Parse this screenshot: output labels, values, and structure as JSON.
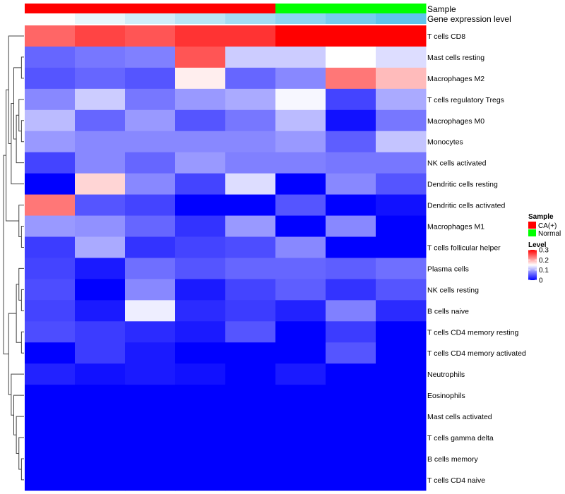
{
  "chart_data": {
    "type": "heatmap",
    "annotation_tracks": [
      {
        "name": "Sample",
        "values": [
          "CA(+)",
          "CA(+)",
          "CA(+)",
          "CA(+)",
          "CA(+)",
          "Normal",
          "Normal",
          "Normal"
        ]
      },
      {
        "name": "Gene expression level",
        "values": [
          0.0,
          0.1,
          0.2,
          0.3,
          0.4,
          0.5,
          0.6,
          0.7
        ]
      }
    ],
    "rows": [
      "T cells CD8",
      "Mast cells resting",
      "Macrophages M2",
      "T cells regulatory  Tregs",
      "Macrophages M0",
      "Monocytes",
      "NK cells activated",
      "Dendritic cells resting",
      "Dendritic cells activated",
      "Macrophages M1",
      "T cells follicular helper",
      "Plasma cells",
      "NK cells resting",
      "B cells naive",
      "T cells CD4 memory resting",
      "T cells CD4 memory activated",
      "Neutrophils",
      "Eosinophils",
      "Mast cells activated",
      "T cells gamma delta",
      "B cells memory",
      "T cells CD4 naive"
    ],
    "values": [
      [
        0.24,
        0.26,
        0.25,
        0.27,
        0.27,
        0.3,
        0.3,
        0.3
      ],
      [
        0.06,
        0.07,
        0.075,
        0.25,
        0.12,
        0.12,
        0.15,
        0.13
      ],
      [
        0.05,
        0.06,
        0.05,
        0.16,
        0.06,
        0.08,
        0.23,
        0.19
      ],
      [
        0.08,
        0.12,
        0.07,
        0.09,
        0.1,
        0.145,
        0.04,
        0.1
      ],
      [
        0.11,
        0.06,
        0.09,
        0.05,
        0.07,
        0.11,
        0.01,
        0.07
      ],
      [
        0.09,
        0.08,
        0.08,
        0.08,
        0.08,
        0.09,
        0.055,
        0.115
      ],
      [
        0.04,
        0.08,
        0.06,
        0.09,
        0.075,
        0.075,
        0.07,
        0.07
      ],
      [
        0.0,
        0.175,
        0.08,
        0.04,
        0.13,
        0.0,
        0.08,
        0.05
      ],
      [
        0.23,
        0.05,
        0.04,
        0.0,
        0.0,
        0.05,
        0.0,
        0.01
      ],
      [
        0.09,
        0.085,
        0.06,
        0.03,
        0.09,
        0.0,
        0.08,
        0.0
      ],
      [
        0.035,
        0.1,
        0.03,
        0.04,
        0.045,
        0.08,
        0.0,
        0.0
      ],
      [
        0.04,
        0.015,
        0.065,
        0.05,
        0.06,
        0.06,
        0.055,
        0.065
      ],
      [
        0.045,
        0.0,
        0.08,
        0.015,
        0.04,
        0.055,
        0.03,
        0.05
      ],
      [
        0.04,
        0.015,
        0.14,
        0.025,
        0.035,
        0.02,
        0.075,
        0.025
      ],
      [
        0.045,
        0.035,
        0.025,
        0.015,
        0.05,
        0.0,
        0.035,
        0.0
      ],
      [
        0.0,
        0.035,
        0.015,
        0.0,
        0.0,
        0.0,
        0.05,
        0.0
      ],
      [
        0.02,
        0.01,
        0.015,
        0.01,
        0.0,
        0.015,
        0.0,
        0.0
      ],
      [
        0.0,
        0.0,
        0.0,
        0.0,
        0.0,
        0.0,
        0.0,
        0.0
      ],
      [
        0.0,
        0.0,
        0.0,
        0.0,
        0.0,
        0.0,
        0.0,
        0.0
      ],
      [
        0.0,
        0.0,
        0.0,
        0.0,
        0.0,
        0.0,
        0.0,
        0.0
      ],
      [
        0.0,
        0.0,
        0.0,
        0.0,
        0.0,
        0.0,
        0.0,
        0.0
      ],
      [
        0.0,
        0.0,
        0.0,
        0.0,
        0.0,
        0.0,
        0.0,
        0.0
      ]
    ],
    "color_scale": {
      "low": "#0000ff",
      "mid": "#ffffff",
      "high": "#ff0000",
      "range": [
        0,
        0.3
      ],
      "midpoint": 0.15
    },
    "legend": {
      "placement": "right",
      "sample_title": "Sample",
      "sample_entries": [
        {
          "label": "CA(+)",
          "color": "#ff0000"
        },
        {
          "label": "Normal",
          "color": "#00ff00"
        }
      ],
      "level_title": "Level",
      "level_ticks": [
        {
          "label": "0.3",
          "value": 0.3
        },
        {
          "label": "0.2",
          "value": 0.2
        },
        {
          "label": "0.1",
          "value": 0.1
        },
        {
          "label": "0",
          "value": 0
        }
      ]
    },
    "dendrogram": "row"
  }
}
